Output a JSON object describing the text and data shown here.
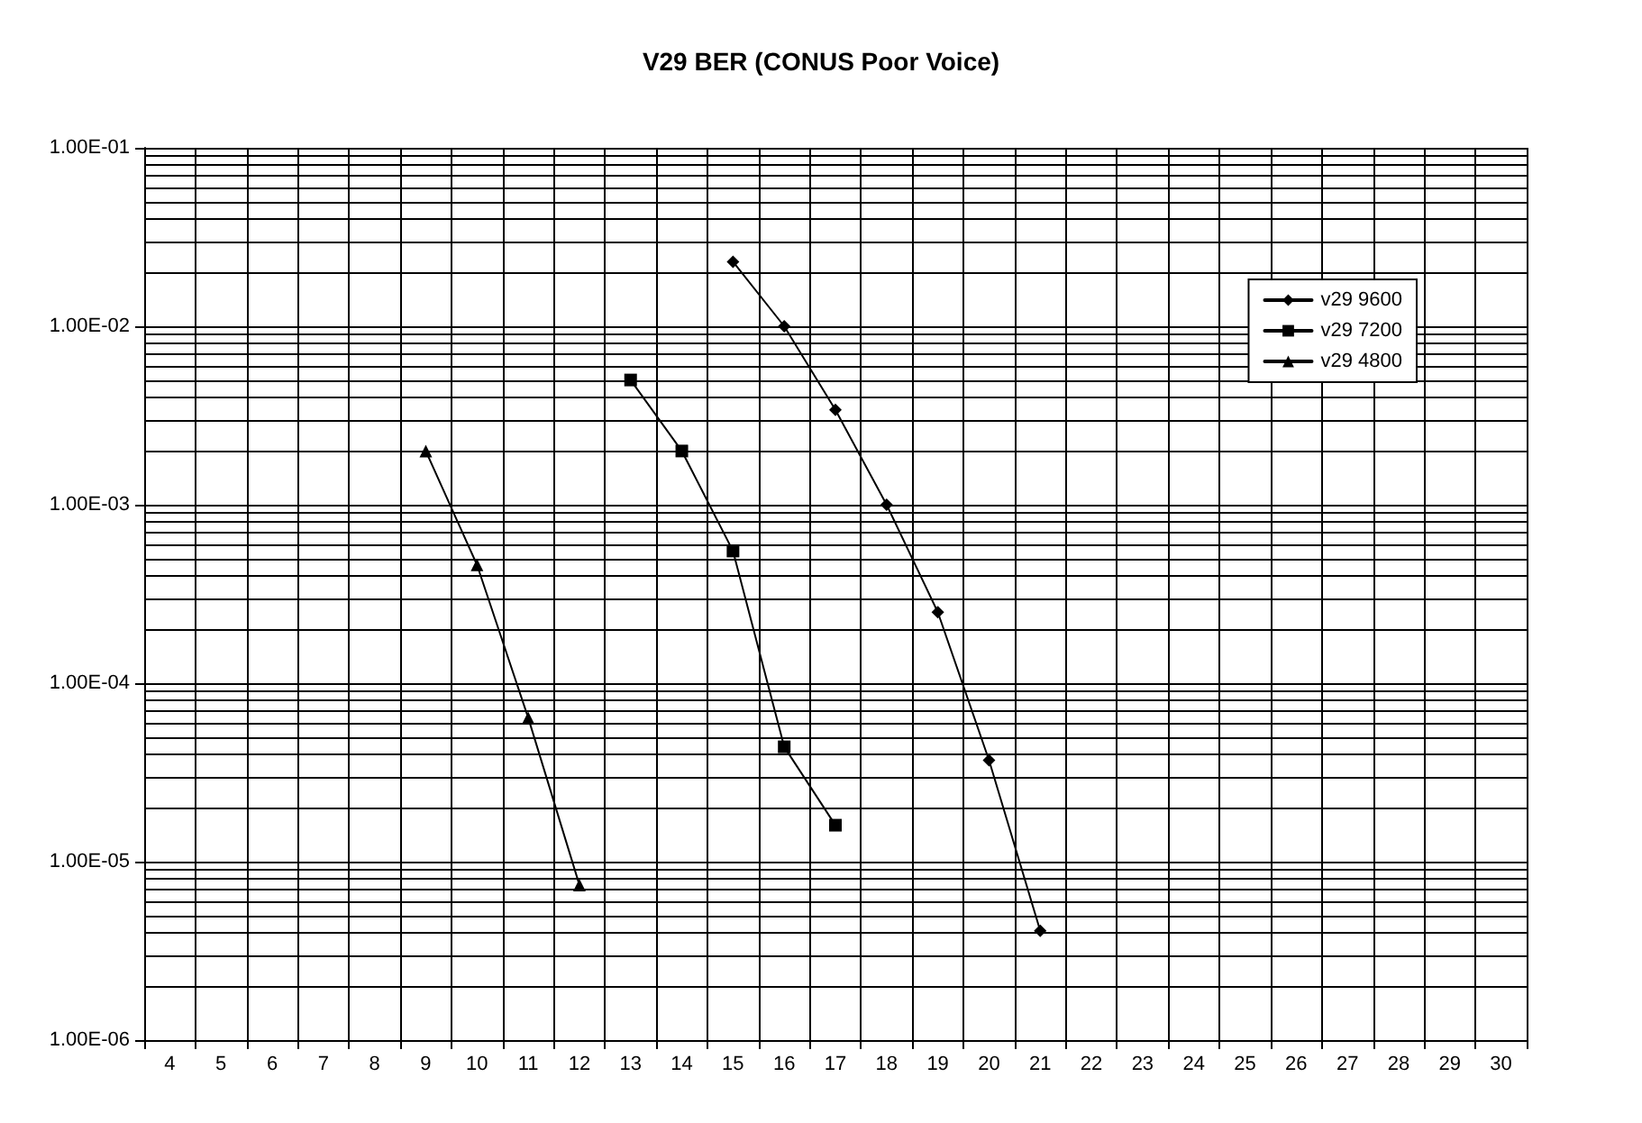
{
  "chart_data": {
    "type": "line",
    "title": "V29 BER (CONUS Poor Voice)",
    "categories": [
      "4",
      "5",
      "6",
      "7",
      "8",
      "9",
      "10",
      "11",
      "12",
      "13",
      "14",
      "15",
      "16",
      "17",
      "18",
      "19",
      "20",
      "21",
      "22",
      "23",
      "24",
      "25",
      "26",
      "27",
      "28",
      "29",
      "30"
    ],
    "series": [
      {
        "name": "v29 9600",
        "color": "#000000",
        "marker": "diamond",
        "values": [
          null,
          null,
          null,
          null,
          null,
          null,
          null,
          null,
          null,
          null,
          null,
          0.023,
          0.01,
          0.0034,
          0.001,
          0.00025,
          3.7e-05,
          4.1e-06,
          null,
          null,
          null,
          null,
          null,
          null,
          null,
          null,
          null
        ]
      },
      {
        "name": "v29 7200",
        "color": "#000000",
        "marker": "square",
        "values": [
          null,
          null,
          null,
          null,
          null,
          null,
          null,
          null,
          null,
          0.005,
          0.002,
          0.00055,
          4.4e-05,
          1.6e-05,
          null,
          null,
          null,
          null,
          null,
          null,
          null,
          null,
          null,
          null,
          null,
          null,
          null
        ]
      },
      {
        "name": "v29 4800",
        "color": "#000000",
        "marker": "triangle",
        "values": [
          null,
          null,
          null,
          null,
          null,
          0.002,
          0.00046,
          6.4e-05,
          7.4e-06,
          null,
          null,
          null,
          null,
          null,
          null,
          null,
          null,
          null,
          null,
          null,
          null,
          null,
          null,
          null,
          null,
          null,
          null
        ]
      }
    ],
    "log": "y",
    "ylim": [
      1e-06,
      0.1
    ],
    "yticks": [
      {
        "value": 1e-06,
        "label": "1.00E-06"
      },
      {
        "value": 1e-05,
        "label": "1.00E-05"
      },
      {
        "value": 0.0001,
        "label": "1.00E-04"
      },
      {
        "value": 0.001,
        "label": "1.00E-03"
      },
      {
        "value": 0.01,
        "label": "1.00E-02"
      },
      {
        "value": 0.1,
        "label": "1.00E-01"
      }
    ],
    "grid": true,
    "legend": "top right",
    "line_style": "solid"
  }
}
